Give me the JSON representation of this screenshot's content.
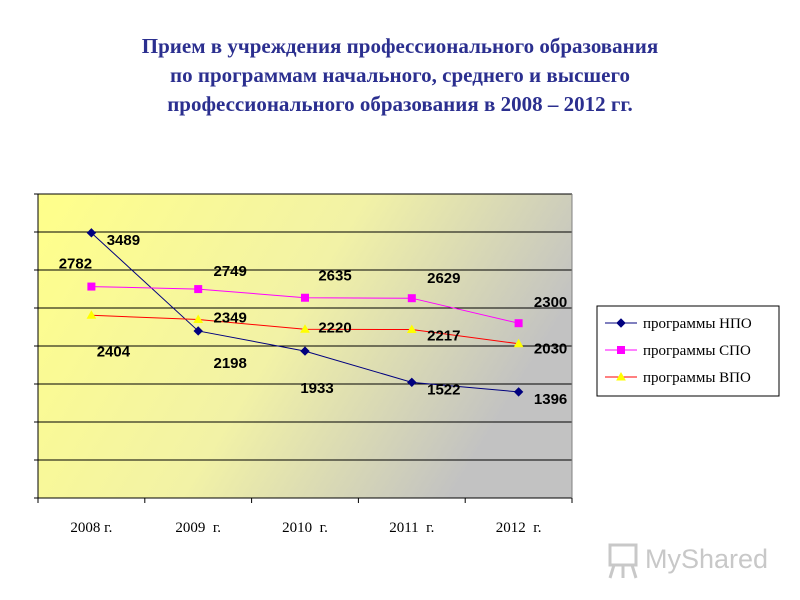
{
  "chart_data": {
    "type": "line",
    "title": "Прием в учреждения профессионального образования по программам начального, среднего и высшего профессионального образования в 2008 – 2012 гг.",
    "title_lines": [
      "Прием в учреждения профессионального образования",
      "по программам начального, среднего и высшего",
      "профессионального образования в 2008 – 2012 гг."
    ],
    "categories": [
      "2008 г.",
      "2009  г.",
      "2010  г.",
      "2011  г.",
      "2012  г."
    ],
    "series": [
      {
        "name": "программы НПО",
        "values": [
          3489,
          2198,
          1933,
          1522,
          1396
        ],
        "color": "#00007F",
        "marker": "diamond"
      },
      {
        "name": "программы СПО",
        "values": [
          2782,
          2749,
          2635,
          2629,
          2300
        ],
        "color": "#FF00FF",
        "marker": "square"
      },
      {
        "name": "программы ВПО",
        "values": [
          2404,
          2349,
          2220,
          2217,
          2030
        ],
        "color": "#FF0000",
        "marker": "triangle",
        "marker_color": "#FFFF00"
      }
    ],
    "ylim": [
      0,
      4000
    ],
    "grid": true,
    "y_tick_labels": false,
    "legend": "right",
    "background": "gradient from yellow (left) to gray (right)"
  },
  "watermark": {
    "text": "MyShared",
    "icon": "presentation-board-icon"
  }
}
